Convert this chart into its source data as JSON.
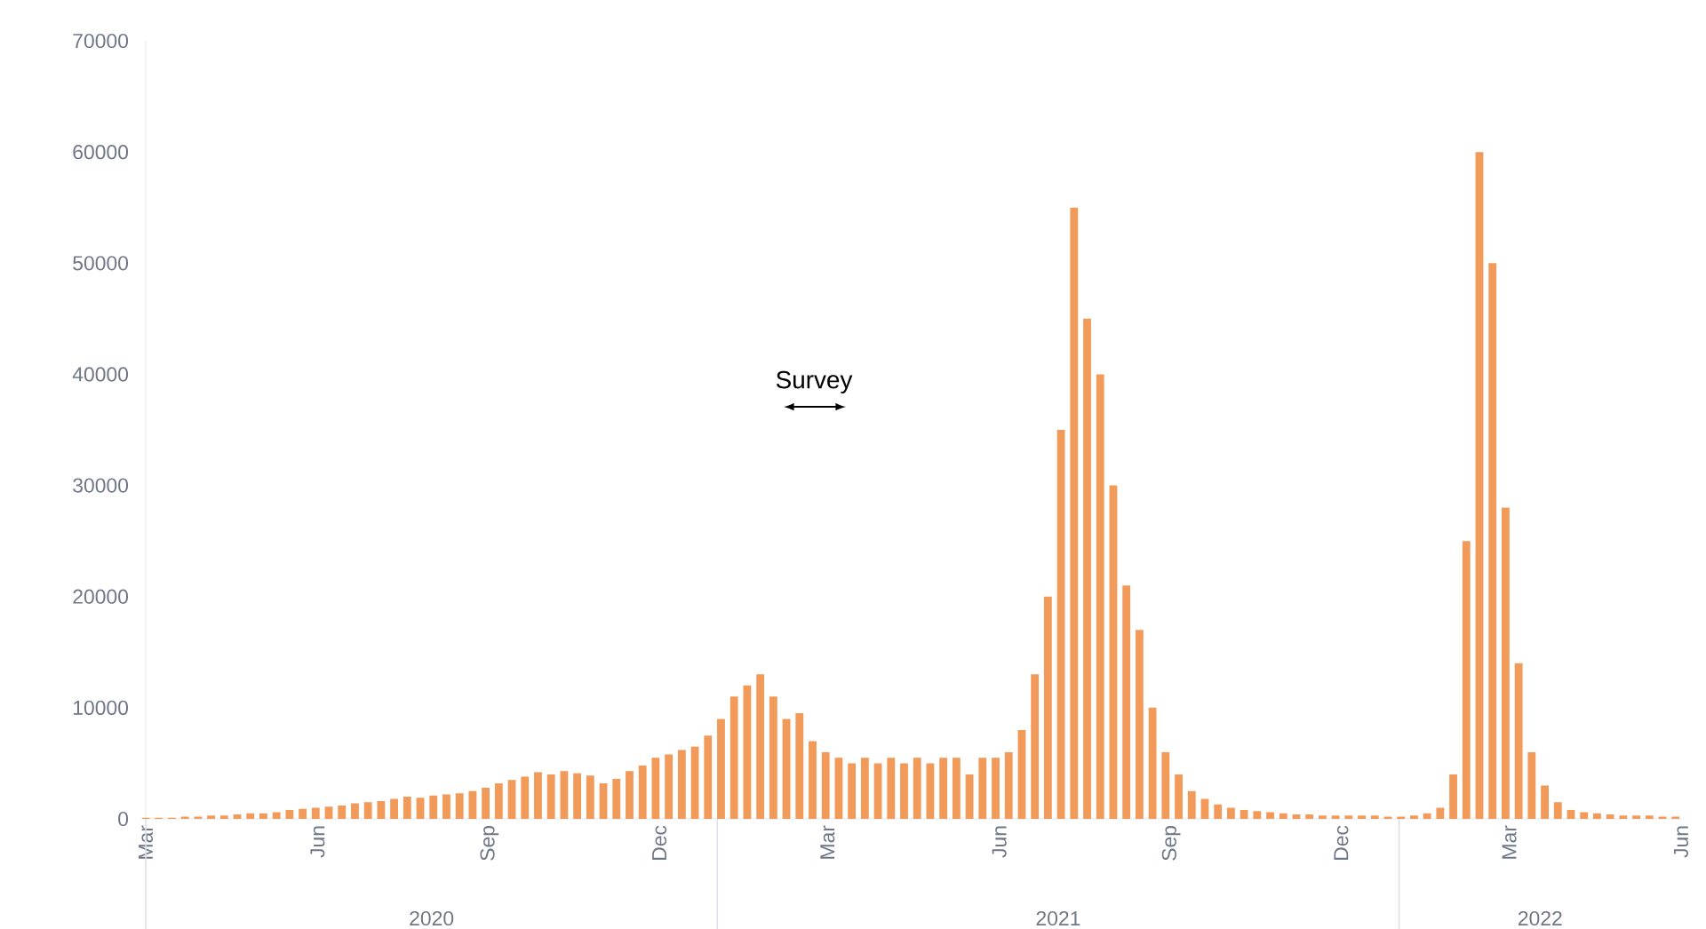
{
  "chart_data": {
    "type": "bar",
    "color": "#f29a5a",
    "x": [
      "2020-03-01",
      "2020-03-08",
      "2020-03-15",
      "2020-03-22",
      "2020-03-29",
      "2020-04-05",
      "2020-04-12",
      "2020-04-19",
      "2020-04-26",
      "2020-05-03",
      "2020-05-10",
      "2020-05-17",
      "2020-05-24",
      "2020-05-31",
      "2020-06-07",
      "2020-06-14",
      "2020-06-21",
      "2020-06-28",
      "2020-07-05",
      "2020-07-12",
      "2020-07-19",
      "2020-07-26",
      "2020-08-02",
      "2020-08-09",
      "2020-08-16",
      "2020-08-23",
      "2020-08-30",
      "2020-09-06",
      "2020-09-13",
      "2020-09-20",
      "2020-09-27",
      "2020-10-04",
      "2020-10-11",
      "2020-10-18",
      "2020-10-25",
      "2020-11-01",
      "2020-11-08",
      "2020-11-15",
      "2020-11-22",
      "2020-11-29",
      "2020-12-06",
      "2020-12-13",
      "2020-12-20",
      "2020-12-27",
      "2021-01-03",
      "2021-01-10",
      "2021-01-17",
      "2021-01-24",
      "2021-01-31",
      "2021-02-07",
      "2021-02-14",
      "2021-02-21",
      "2021-02-28",
      "2021-03-07",
      "2021-03-14",
      "2021-03-21",
      "2021-03-28",
      "2021-04-04",
      "2021-04-11",
      "2021-04-18",
      "2021-04-25",
      "2021-05-02",
      "2021-05-09",
      "2021-05-16",
      "2021-05-23",
      "2021-05-30",
      "2021-06-06",
      "2021-06-13",
      "2021-06-20",
      "2021-06-27",
      "2021-07-04",
      "2021-07-11",
      "2021-07-18",
      "2021-07-25",
      "2021-08-01",
      "2021-08-08",
      "2021-08-15",
      "2021-08-22",
      "2021-08-29",
      "2021-09-05",
      "2021-09-12",
      "2021-09-19",
      "2021-09-26",
      "2021-10-03",
      "2021-10-10",
      "2021-10-17",
      "2021-10-24",
      "2021-10-31",
      "2021-11-07",
      "2021-11-14",
      "2021-11-21",
      "2021-11-28",
      "2021-12-05",
      "2021-12-12",
      "2021-12-19",
      "2021-12-26",
      "2022-01-02",
      "2022-01-09",
      "2022-01-16",
      "2022-01-23",
      "2022-01-30",
      "2022-02-06",
      "2022-02-13",
      "2022-02-20",
      "2022-02-27",
      "2022-03-06",
      "2022-03-13",
      "2022-03-20",
      "2022-03-27",
      "2022-04-03",
      "2022-04-10",
      "2022-04-17",
      "2022-04-24",
      "2022-05-01",
      "2022-05-08",
      "2022-05-15",
      "2022-05-22",
      "2022-05-29"
    ],
    "values": [
      100,
      100,
      100,
      200,
      200,
      300,
      300,
      400,
      500,
      500,
      600,
      800,
      900,
      1000,
      1100,
      1200,
      1400,
      1500,
      1600,
      1800,
      2000,
      1900,
      2100,
      2200,
      2300,
      2500,
      2800,
      3200,
      3500,
      3800,
      4200,
      4000,
      4300,
      4100,
      3900,
      3200,
      3600,
      4300,
      4800,
      5500,
      5800,
      6200,
      6500,
      7500,
      9000,
      11000,
      12000,
      13000,
      11000,
      9000,
      9500,
      7000,
      6000,
      5500,
      5000,
      5500,
      5000,
      5500,
      5000,
      5500,
      5000,
      5500,
      5500,
      4000,
      5500,
      5500,
      6000,
      8000,
      13000,
      20000,
      35000,
      55000,
      45000,
      40000,
      30000,
      21000,
      17000,
      10000,
      6000,
      4000,
      2500,
      1800,
      1300,
      1000,
      800,
      700,
      600,
      500,
      400,
      400,
      300,
      300,
      300,
      300,
      300,
      200,
      200,
      300,
      500,
      1000,
      4000,
      25000,
      60000,
      50000,
      28000,
      14000,
      6000,
      3000,
      1500,
      800,
      600,
      500,
      400,
      300,
      300,
      300,
      200,
      200
    ],
    "xlim": [
      "2020-03-01",
      "2022-06-01"
    ],
    "xticks": [
      {
        "value": "2020-03-01",
        "label": "Mar"
      },
      {
        "value": "2020-06-01",
        "label": "Jun"
      },
      {
        "value": "2020-09-01",
        "label": "Sep"
      },
      {
        "value": "2020-12-01",
        "label": "Dec"
      },
      {
        "value": "2021-03-01",
        "label": "Mar"
      },
      {
        "value": "2021-06-01",
        "label": "Jun"
      },
      {
        "value": "2021-09-01",
        "label": "Sep"
      },
      {
        "value": "2021-12-01",
        "label": "Dec"
      },
      {
        "value": "2022-03-01",
        "label": "Mar"
      },
      {
        "value": "2022-06-01",
        "label": "Jun"
      }
    ],
    "ylim": [
      0,
      70000
    ],
    "yticks": [
      0,
      10000,
      20000,
      30000,
      40000,
      50000,
      60000,
      70000
    ],
    "annotations": [
      "Survey",
      "2020",
      "2021",
      "2022"
    ]
  }
}
